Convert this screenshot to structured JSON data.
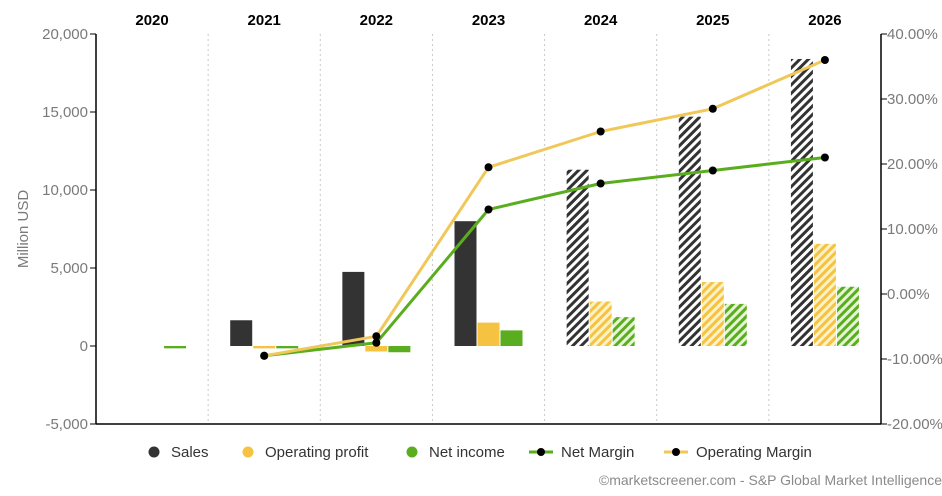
{
  "chart_data": {
    "type": "bar",
    "categories": [
      "2020",
      "2021",
      "2022",
      "2023",
      "2024",
      "2025",
      "2026"
    ],
    "ylabel": "Million USD",
    "ylim": [
      -5000,
      20000
    ],
    "y_ticks": [
      "-5,000",
      "0",
      "5,000",
      "10,000",
      "15,000",
      "20,000"
    ],
    "y2lim": [
      -20,
      40
    ],
    "y2_ticks": [
      "-20.00%",
      "-10.00%",
      "0.00%",
      "10.00%",
      "20.00%",
      "30.00%",
      "40.00%"
    ],
    "estimates_from": "2024",
    "grid": "vertical dotted lines between years",
    "legend_position": "bottom",
    "bar_series": [
      {
        "name": "Sales",
        "color": "#333333",
        "values": [
          null,
          1650,
          4750,
          8000,
          11300,
          14700,
          18400
        ]
      },
      {
        "name": "Operating profit",
        "color": "#f5c242",
        "values": [
          null,
          -150,
          -350,
          1500,
          2850,
          4100,
          6550
        ]
      },
      {
        "name": "Net income",
        "color": "#5aad1e",
        "values": [
          -150,
          -150,
          -400,
          1000,
          1850,
          2700,
          3800
        ]
      }
    ],
    "line_series": [
      {
        "name": "Net Margin",
        "axis": "right",
        "color": "#5aad1e",
        "points": [
          [
            "2021",
            -9.5
          ],
          [
            "2022",
            -7.5
          ],
          [
            "2023",
            13.0
          ],
          [
            "2024",
            17.0
          ],
          [
            "2025",
            19.0
          ],
          [
            "2026",
            21.0
          ]
        ]
      },
      {
        "name": "Operating Margin",
        "axis": "right",
        "color": "#f0c85a",
        "points": [
          [
            "2021",
            -9.5
          ],
          [
            "2022",
            -6.5
          ],
          [
            "2023",
            19.5
          ],
          [
            "2024",
            25.0
          ],
          [
            "2025",
            28.5
          ],
          [
            "2026",
            36.0
          ]
        ]
      }
    ]
  },
  "legend": [
    "Sales",
    "Operating profit",
    "Net income",
    "Net Margin",
    "Operating Margin"
  ],
  "credit": "©marketscreener.com - S&P Global Market Intelligence"
}
